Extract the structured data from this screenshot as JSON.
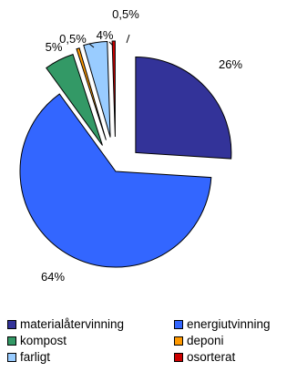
{
  "chart_data": {
    "type": "pie",
    "title": "",
    "series": [
      {
        "name": "materialåtervinning",
        "value": 26,
        "label": "26%",
        "color": "#333399"
      },
      {
        "name": "energiutvinning",
        "value": 64,
        "label": "64%",
        "color": "#3366FF"
      },
      {
        "name": "kompost",
        "value": 5,
        "label": "5%",
        "color": "#339966"
      },
      {
        "name": "deponi",
        "value": 0.5,
        "label": "0,5%",
        "color": "#FF9900"
      },
      {
        "name": "farligt",
        "value": 4,
        "label": "4%",
        "color": "#99CCFF"
      },
      {
        "name": "osorterat",
        "value": 0.5,
        "label": "0,5%",
        "color": "#CC0000"
      }
    ],
    "legend_position": "bottom",
    "exploded": true
  }
}
